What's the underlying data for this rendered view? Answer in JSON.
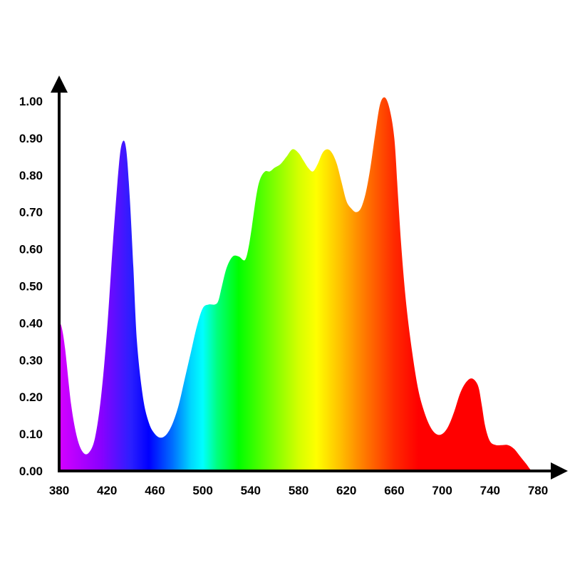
{
  "chart_data": {
    "type": "area",
    "title": "",
    "xlabel": "",
    "ylabel": "",
    "xlim": [
      380,
      790
    ],
    "ylim": [
      0,
      1.0
    ],
    "grid": false,
    "legend": "none",
    "fill": "visible-spectrum gradient (color follows wavelength)",
    "x_ticks": [
      {
        "value": 380,
        "label": "380"
      },
      {
        "value": 420,
        "label": "420"
      },
      {
        "value": 460,
        "label": "460"
      },
      {
        "value": 500,
        "label": "500"
      },
      {
        "value": 540,
        "label": "540"
      },
      {
        "value": 580,
        "label": "580"
      },
      {
        "value": 620,
        "label": "620"
      },
      {
        "value": 660,
        "label": "660"
      },
      {
        "value": 700,
        "label": "700"
      },
      {
        "value": 740,
        "label": "740"
      },
      {
        "value": 780,
        "label": "780"
      }
    ],
    "y_ticks": [
      {
        "value": 0.0,
        "label": "0.00"
      },
      {
        "value": 0.1,
        "label": "0.10"
      },
      {
        "value": 0.2,
        "label": "0.20"
      },
      {
        "value": 0.3,
        "label": "0.30"
      },
      {
        "value": 0.4,
        "label": "0.40"
      },
      {
        "value": 0.5,
        "label": "0.50"
      },
      {
        "value": 0.6,
        "label": "0.60"
      },
      {
        "value": 0.7,
        "label": "0.70"
      },
      {
        "value": 0.8,
        "label": "0.80"
      },
      {
        "value": 0.9,
        "label": "0.90"
      },
      {
        "value": 1.0,
        "label": "1.00"
      }
    ],
    "series": [
      {
        "x": [
          380,
          382,
          385,
          390,
          395,
          400,
          405,
          410,
          415,
          420,
          425,
          430,
          433,
          436,
          439,
          442,
          445,
          450,
          455,
          460,
          465,
          470,
          475,
          480,
          485,
          490,
          495,
          500,
          505,
          510,
          513,
          516,
          520,
          525,
          530,
          535,
          538,
          541,
          545,
          548,
          552,
          556,
          560,
          565,
          570,
          575,
          580,
          584,
          588,
          592,
          596,
          600,
          604,
          608,
          612,
          616,
          620,
          624,
          628,
          632,
          636,
          640,
          644,
          648,
          652,
          656,
          660,
          663,
          666,
          670,
          675,
          680,
          685,
          690,
          695,
          700,
          705,
          710,
          715,
          720,
          725,
          730,
          733,
          736,
          740,
          745,
          750,
          755,
          760,
          765,
          770,
          775,
          780,
          785
        ],
        "y": [
          0.4,
          0.39,
          0.33,
          0.18,
          0.09,
          0.05,
          0.05,
          0.09,
          0.2,
          0.38,
          0.62,
          0.83,
          0.89,
          0.87,
          0.74,
          0.55,
          0.35,
          0.2,
          0.13,
          0.1,
          0.09,
          0.1,
          0.13,
          0.18,
          0.25,
          0.32,
          0.39,
          0.44,
          0.45,
          0.45,
          0.46,
          0.5,
          0.55,
          0.58,
          0.58,
          0.57,
          0.6,
          0.66,
          0.75,
          0.79,
          0.81,
          0.81,
          0.82,
          0.83,
          0.85,
          0.87,
          0.86,
          0.84,
          0.82,
          0.81,
          0.83,
          0.86,
          0.87,
          0.86,
          0.83,
          0.78,
          0.73,
          0.71,
          0.7,
          0.71,
          0.75,
          0.82,
          0.91,
          0.99,
          1.01,
          0.98,
          0.9,
          0.75,
          0.6,
          0.45,
          0.32,
          0.22,
          0.16,
          0.12,
          0.1,
          0.1,
          0.12,
          0.16,
          0.21,
          0.24,
          0.25,
          0.23,
          0.18,
          0.12,
          0.08,
          0.07,
          0.07,
          0.07,
          0.06,
          0.04,
          0.02,
          0.0,
          0.0,
          0.0
        ]
      }
    ]
  },
  "colors": {
    "axis": "#000000",
    "background": "#ffffff",
    "gradient_stops": [
      {
        "wavelength": 380,
        "color": "#d400ff"
      },
      {
        "wavelength": 415,
        "color": "#8a00ff"
      },
      {
        "wavelength": 440,
        "color": "#2a1fff"
      },
      {
        "wavelength": 455,
        "color": "#0000ff"
      },
      {
        "wavelength": 475,
        "color": "#0070ff"
      },
      {
        "wavelength": 490,
        "color": "#00d6ff"
      },
      {
        "wavelength": 500,
        "color": "#00ffff"
      },
      {
        "wavelength": 512,
        "color": "#00ff7f"
      },
      {
        "wavelength": 530,
        "color": "#00ff00"
      },
      {
        "wavelength": 560,
        "color": "#80ff00"
      },
      {
        "wavelength": 580,
        "color": "#d4ff00"
      },
      {
        "wavelength": 595,
        "color": "#ffff00"
      },
      {
        "wavelength": 615,
        "color": "#ffbf00"
      },
      {
        "wavelength": 635,
        "color": "#ff7a00"
      },
      {
        "wavelength": 660,
        "color": "#ff2a00"
      },
      {
        "wavelength": 680,
        "color": "#ff0000"
      },
      {
        "wavelength": 785,
        "color": "#ff0000"
      }
    ]
  }
}
